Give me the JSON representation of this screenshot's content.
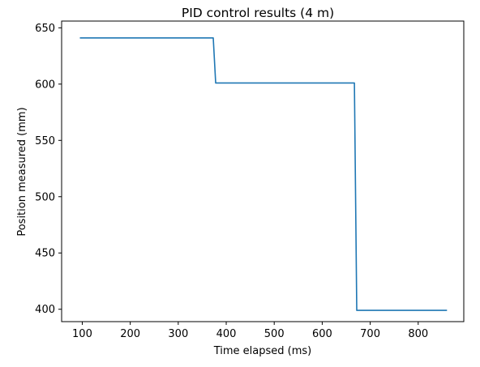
{
  "chart_data": {
    "type": "line",
    "title": "PID control results (4 m)",
    "xlabel": "Time elapsed (ms)",
    "ylabel": "Position measured (mm)",
    "xlim": [
      57,
      895
    ],
    "ylim": [
      389,
      656
    ],
    "xticks": [
      100,
      200,
      300,
      400,
      500,
      600,
      700,
      800
    ],
    "yticks": [
      400,
      450,
      500,
      550,
      600,
      650
    ],
    "grid": false,
    "series": [
      {
        "color": "#1f77b4",
        "x": [
          95,
          373,
          378,
          667,
          672,
          860
        ],
        "y": [
          641,
          641,
          601,
          601,
          399,
          399
        ]
      }
    ]
  }
}
